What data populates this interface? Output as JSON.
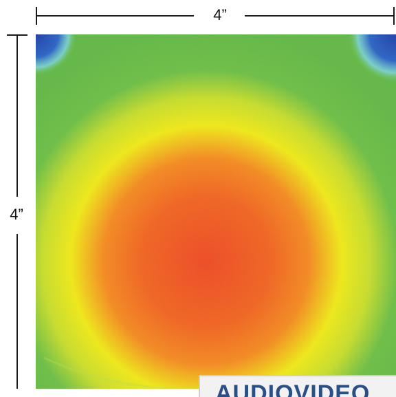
{
  "dimensions": {
    "width_label": "4”",
    "height_label": "4”"
  },
  "heatmap": {
    "colors": {
      "center": "#ef4a23",
      "mid_orange": "#f58a1f",
      "yellow": "#f0ea16",
      "green": "#6cbf45",
      "edge_blue": "#2a63c4",
      "edge_cyan": "#7fd6e8"
    }
  },
  "watermark": {
    "text": "AUDIOVIDEO"
  }
}
